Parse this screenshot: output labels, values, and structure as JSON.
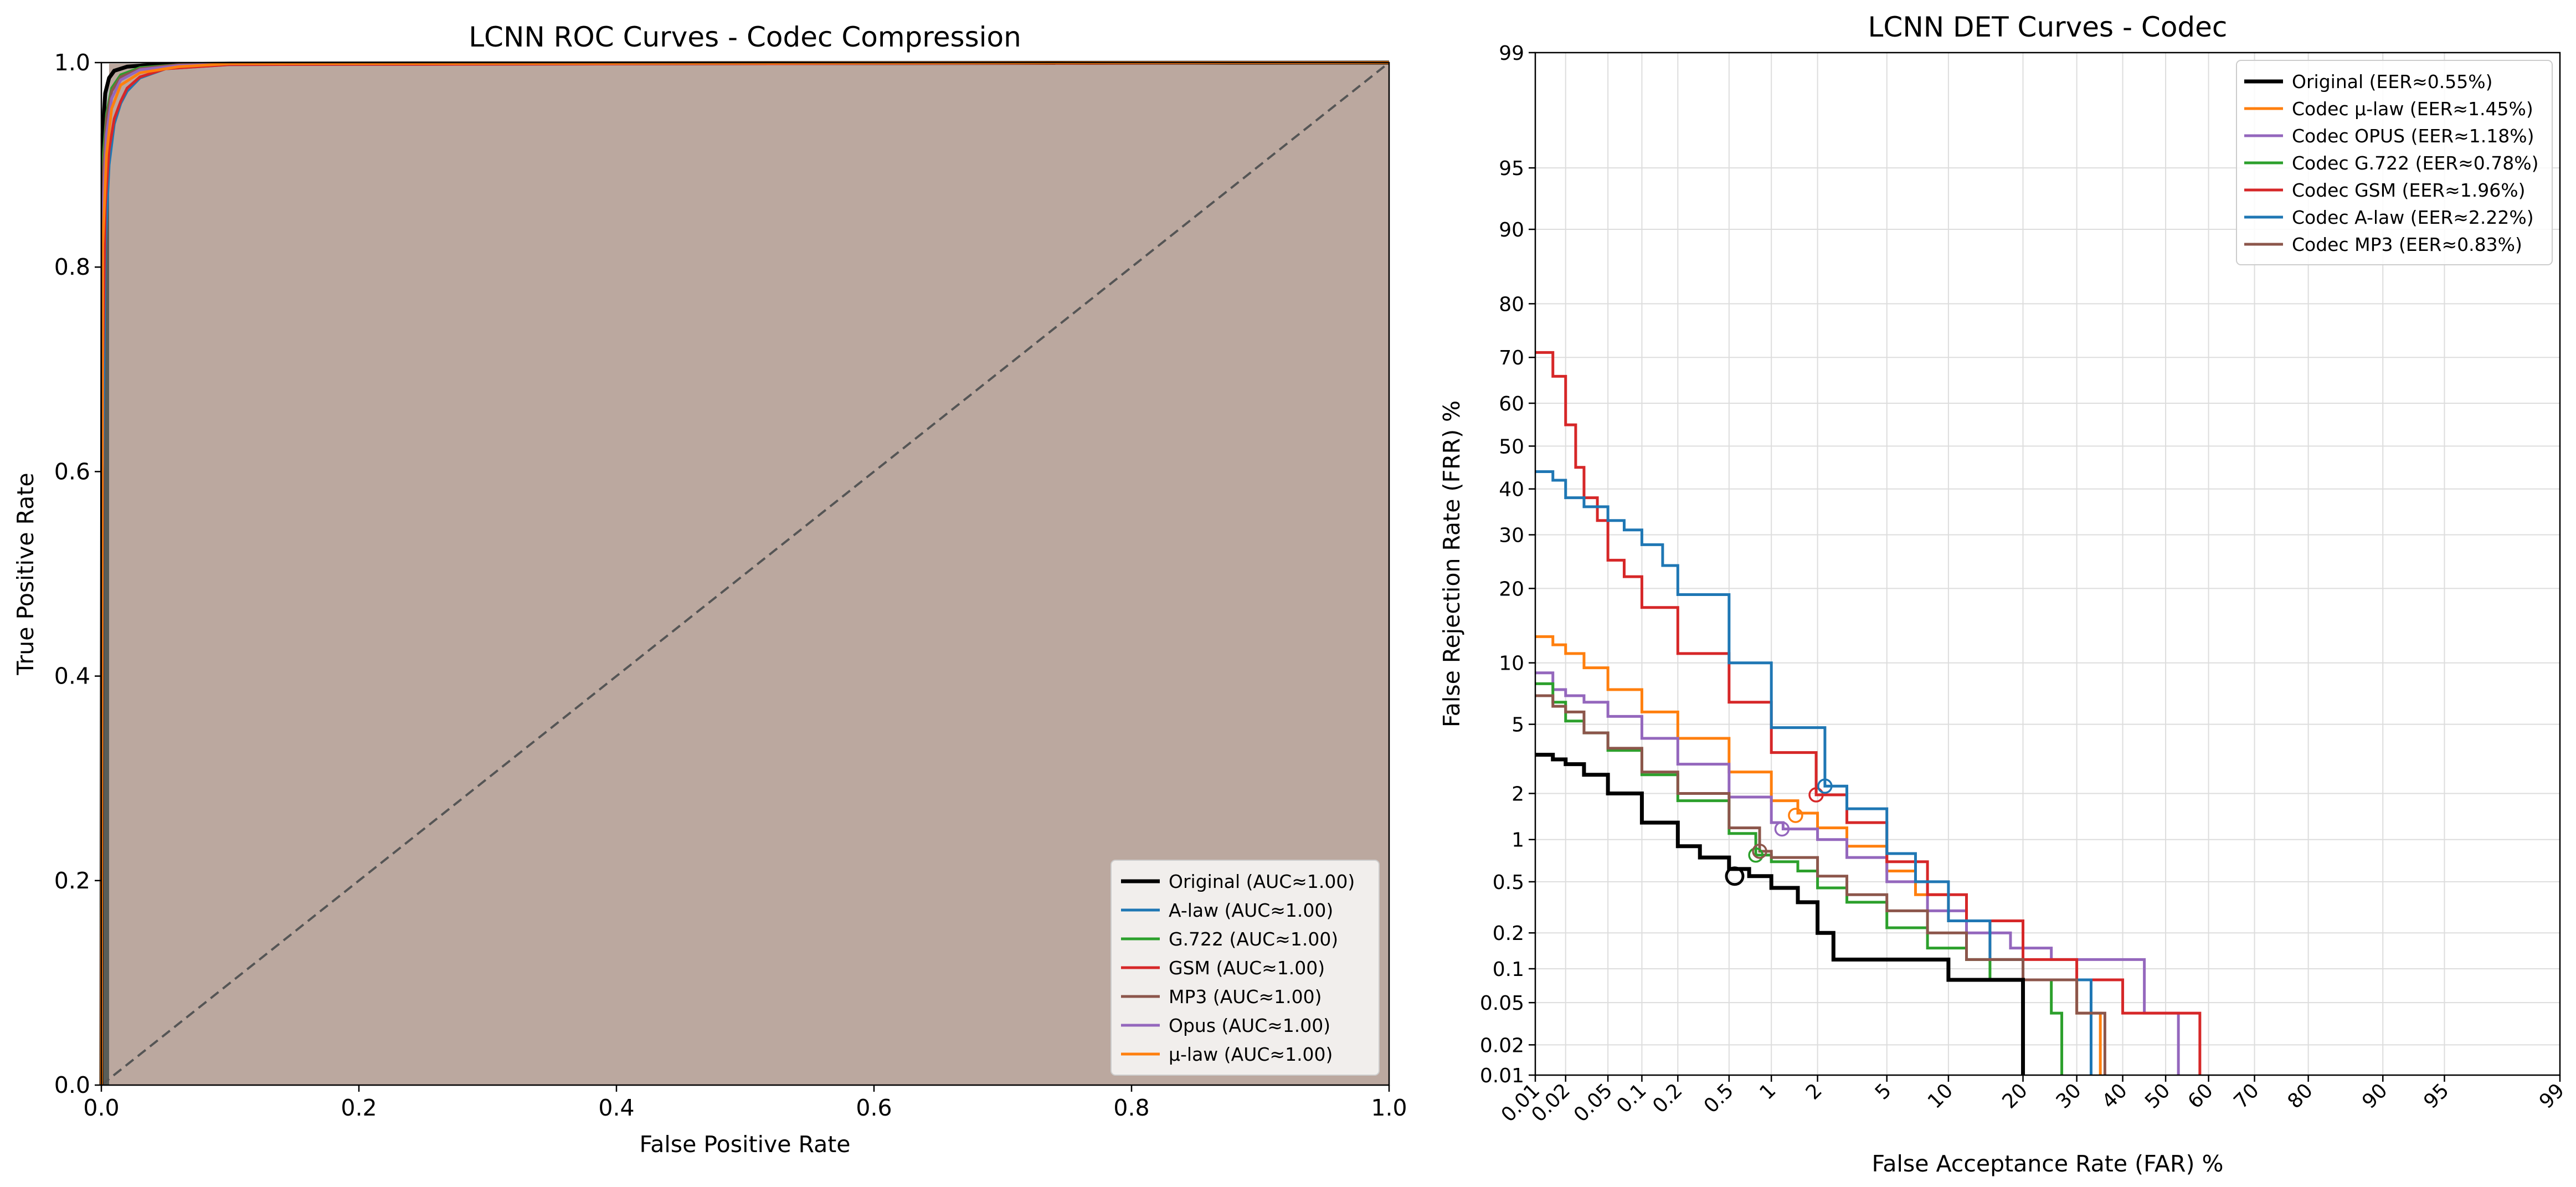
{
  "chart_data": [
    {
      "type": "line",
      "title": "LCNN ROC Curves - Codec Compression",
      "xlabel": "False Positive Rate",
      "ylabel": "True Positive Rate",
      "xlim": [
        0.0,
        1.0
      ],
      "ylim": [
        0.0,
        1.0
      ],
      "xticks": [
        "0.0",
        "0.2",
        "0.4",
        "0.6",
        "0.8",
        "1.0"
      ],
      "yticks": [
        "0.0",
        "0.2",
        "0.4",
        "0.6",
        "0.8",
        "1.0"
      ],
      "grid": false,
      "legend_position": "lower-right",
      "fill_color": "#bba89f",
      "diagonal": {
        "x": [
          0,
          1
        ],
        "y": [
          0,
          1
        ],
        "color": "#555555",
        "style": "dashed"
      },
      "series": [
        {
          "name": "Original (AUC≈1.00)",
          "color": "#000000",
          "x": [
            0,
            0.001,
            0.003,
            0.006,
            0.01,
            0.02,
            0.04,
            0.1,
            1
          ],
          "y": [
            0,
            0.93,
            0.97,
            0.985,
            0.992,
            0.996,
            0.998,
            0.999,
            1
          ]
        },
        {
          "name": "A-law (AUC≈1.00)",
          "color": "#1f77b4",
          "x": [
            0,
            0.001,
            0.003,
            0.006,
            0.01,
            0.015,
            0.02,
            0.03,
            0.05,
            0.1,
            1
          ],
          "y": [
            0,
            0.6,
            0.82,
            0.9,
            0.94,
            0.96,
            0.972,
            0.985,
            0.994,
            0.998,
            1
          ]
        },
        {
          "name": "G.722 (AUC≈1.00)",
          "color": "#2ca02c",
          "x": [
            0,
            0.001,
            0.004,
            0.008,
            0.015,
            0.03,
            0.06,
            0.1,
            1
          ],
          "y": [
            0,
            0.9,
            0.95,
            0.975,
            0.988,
            0.995,
            0.998,
            0.999,
            1
          ]
        },
        {
          "name": "GSM (AUC≈1.00)",
          "color": "#d62728",
          "x": [
            0,
            0.001,
            0.003,
            0.006,
            0.01,
            0.015,
            0.02,
            0.03,
            0.05,
            0.1,
            1
          ],
          "y": [
            0,
            0.7,
            0.86,
            0.915,
            0.945,
            0.962,
            0.975,
            0.986,
            0.994,
            0.998,
            1
          ]
        },
        {
          "name": "MP3 (AUC≈1.00)",
          "color": "#8c564b",
          "x": [
            0,
            0.001,
            0.004,
            0.008,
            0.015,
            0.03,
            0.06,
            0.1,
            1
          ],
          "y": [
            0,
            0.88,
            0.945,
            0.972,
            0.986,
            0.994,
            0.998,
            0.999,
            1
          ]
        },
        {
          "name": "Opus (AUC≈1.00)",
          "color": "#9467bd",
          "x": [
            0,
            0.001,
            0.004,
            0.008,
            0.015,
            0.03,
            0.06,
            0.1,
            1
          ],
          "y": [
            0,
            0.85,
            0.93,
            0.965,
            0.983,
            0.993,
            0.997,
            0.999,
            1
          ]
        },
        {
          "name": "μ-law (AUC≈1.00)",
          "color": "#ff7f0e",
          "x": [
            0,
            0.001,
            0.004,
            0.008,
            0.015,
            0.03,
            0.06,
            0.1,
            1
          ],
          "y": [
            0,
            0.82,
            0.91,
            0.955,
            0.978,
            0.99,
            0.996,
            0.999,
            1
          ]
        }
      ]
    },
    {
      "type": "line",
      "title": "LCNN DET Curves - Codec",
      "xlabel": "False Acceptance Rate (FAR) %",
      "ylabel": "False Rejection Rate (FRR) %",
      "scale": "normal-deviate (probit)",
      "xlim": [
        0.01,
        99
      ],
      "ylim": [
        0.01,
        99
      ],
      "xticks": [
        "0.01",
        "0.02",
        "0.05",
        "0.1",
        "0.2",
        "0.5",
        "1",
        "2",
        "5",
        "10",
        "20",
        "30",
        "40",
        "50",
        "60",
        "70",
        "80",
        "90",
        "95",
        "99"
      ],
      "yticks": [
        "0.01",
        "0.02",
        "0.05",
        "0.1",
        "0.2",
        "0.5",
        "1",
        "2",
        "5",
        "10",
        "20",
        "30",
        "40",
        "50",
        "60",
        "70",
        "80",
        "90",
        "95",
        "99"
      ],
      "grid": true,
      "legend_position": "upper-right",
      "series": [
        {
          "name": "Original (EER≈0.55%)",
          "color": "#000000",
          "eer": 0.55,
          "x": [
            0.01,
            0.015,
            0.02,
            0.03,
            0.05,
            0.1,
            0.2,
            0.3,
            0.5,
            0.7,
            1,
            1.5,
            2,
            2.5,
            3,
            10,
            20,
            20
          ],
          "y": [
            3.4,
            3.2,
            3.0,
            2.6,
            2.0,
            1.3,
            0.9,
            0.75,
            0.62,
            0.55,
            0.45,
            0.35,
            0.2,
            0.12,
            0.12,
            0.08,
            0.08,
            0.01
          ]
        },
        {
          "name": "Codec μ-law (EER≈1.45%)",
          "color": "#ff7f0e",
          "x": [
            0.01,
            0.015,
            0.02,
            0.03,
            0.05,
            0.1,
            0.2,
            0.5,
            1,
            1.5,
            2,
            3,
            5,
            7,
            10,
            15,
            20,
            30,
            35,
            35
          ],
          "y": [
            13,
            12,
            11,
            9.5,
            7.5,
            5.8,
            4.2,
            2.7,
            1.8,
            1.5,
            1.2,
            0.9,
            0.6,
            0.4,
            0.25,
            0.12,
            0.08,
            0.04,
            0.04,
            0.01
          ]
        },
        {
          "name": "Codec OPUS (EER≈1.18%)",
          "color": "#9467bd",
          "x": [
            0.01,
            0.015,
            0.02,
            0.03,
            0.05,
            0.1,
            0.2,
            0.5,
            1,
            1.2,
            2,
            3,
            5,
            8,
            12,
            18,
            25,
            35,
            45,
            45,
            50,
            53,
            53
          ],
          "y": [
            9,
            7.5,
            7,
            6.5,
            5.5,
            4.2,
            3.0,
            1.9,
            1.3,
            1.18,
            1.0,
            0.75,
            0.5,
            0.3,
            0.2,
            0.15,
            0.12,
            0.12,
            0.12,
            0.04,
            0.04,
            0.04,
            0.01
          ]
        },
        {
          "name": "Codec G.722 (EER≈0.78%)",
          "color": "#2ca02c",
          "x": [
            0.01,
            0.015,
            0.02,
            0.03,
            0.05,
            0.1,
            0.2,
            0.5,
            0.78,
            1,
            1.5,
            2,
            3,
            5,
            8,
            12,
            15,
            25,
            25,
            27,
            27
          ],
          "y": [
            8,
            6.5,
            5.2,
            4.5,
            3.6,
            2.6,
            1.8,
            1.1,
            0.78,
            0.7,
            0.6,
            0.45,
            0.35,
            0.22,
            0.15,
            0.12,
            0.08,
            0.08,
            0.04,
            0.04,
            0.01
          ]
        },
        {
          "name": "Codec GSM (EER≈1.96%)",
          "color": "#d62728",
          "x": [
            0.01,
            0.015,
            0.02,
            0.025,
            0.03,
            0.04,
            0.05,
            0.07,
            0.1,
            0.2,
            0.5,
            1,
            1.96,
            3,
            5,
            8,
            12,
            20,
            30,
            40,
            55,
            58,
            58
          ],
          "y": [
            71,
            66,
            55,
            45,
            38,
            33,
            25,
            22,
            17,
            11,
            6.5,
            3.5,
            1.96,
            1.3,
            0.7,
            0.4,
            0.25,
            0.12,
            0.08,
            0.04,
            0.04,
            0.04,
            0.01
          ]
        },
        {
          "name": "Codec A-law (EER≈2.22%)",
          "color": "#1f77b4",
          "x": [
            0.01,
            0.015,
            0.02,
            0.03,
            0.05,
            0.07,
            0.1,
            0.15,
            0.2,
            0.5,
            1,
            2.22,
            3,
            5,
            7,
            10,
            15,
            20,
            30,
            33,
            33
          ],
          "y": [
            44,
            42,
            38,
            36,
            33,
            31,
            28,
            24,
            19,
            10,
            4.8,
            2.22,
            1.6,
            0.8,
            0.5,
            0.25,
            0.12,
            0.08,
            0.08,
            0.04,
            0.01
          ]
        },
        {
          "name": "Codec MP3 (EER≈0.83%)",
          "color": "#8c564b",
          "x": [
            0.01,
            0.015,
            0.02,
            0.03,
            0.05,
            0.1,
            0.2,
            0.5,
            0.83,
            1,
            2,
            3,
            5,
            8,
            12,
            20,
            30,
            36,
            36
          ],
          "y": [
            7,
            6.2,
            5.8,
            4.5,
            3.7,
            2.7,
            2.0,
            1.2,
            0.83,
            0.75,
            0.55,
            0.4,
            0.3,
            0.2,
            0.12,
            0.08,
            0.04,
            0.04,
            0.01
          ]
        }
      ]
    }
  ]
}
